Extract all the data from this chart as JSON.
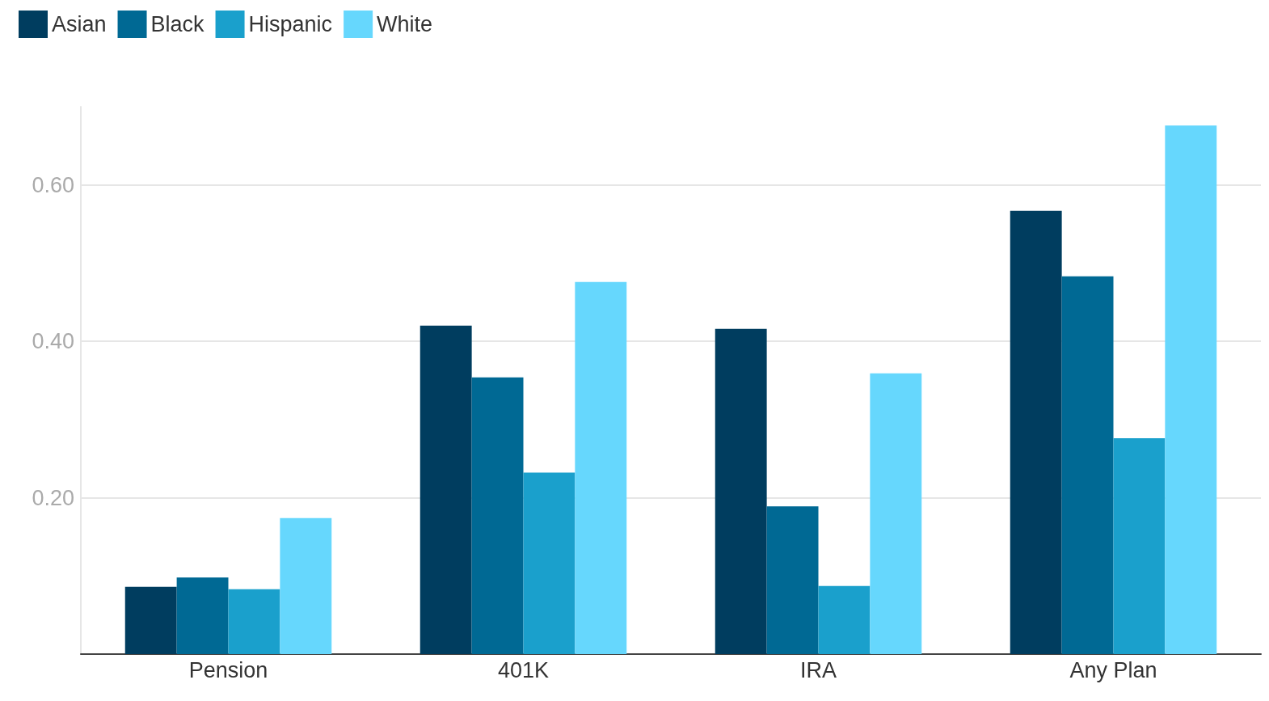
{
  "chart_data": {
    "type": "bar",
    "categories": [
      "Pension",
      "401K",
      "IRA",
      "Any Plan"
    ],
    "series": [
      {
        "name": "Asian",
        "color": "#003d5f",
        "values": [
          0.086,
          0.42,
          0.416,
          0.567
        ]
      },
      {
        "name": "Black",
        "color": "#006994",
        "values": [
          0.098,
          0.354,
          0.189,
          0.483
        ]
      },
      {
        "name": "Hispanic",
        "color": "#1aa0cc",
        "values": [
          0.083,
          0.232,
          0.087,
          0.276
        ]
      },
      {
        "name": "White",
        "color": "#66d7fd",
        "values": [
          0.174,
          0.476,
          0.359,
          0.676
        ]
      }
    ],
    "ylim": [
      0,
      0.7
    ],
    "yticks": [
      {
        "value": 0,
        "label": null
      },
      {
        "value": 0.2,
        "label": "0.20"
      },
      {
        "value": 0.4,
        "label": "0.40"
      },
      {
        "value": 0.6,
        "label": "0.60"
      }
    ],
    "grid": "y",
    "legend": "top left"
  }
}
